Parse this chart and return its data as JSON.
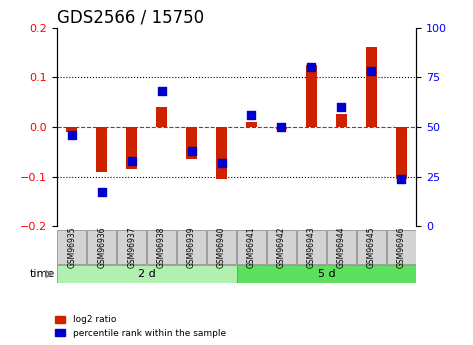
{
  "title": "GDS2566 / 15750",
  "samples": [
    "GSM96935",
    "GSM96936",
    "GSM96937",
    "GSM96938",
    "GSM96939",
    "GSM96940",
    "GSM96941",
    "GSM96942",
    "GSM96943",
    "GSM96944",
    "GSM96945",
    "GSM96946"
  ],
  "log2_ratio": [
    -0.01,
    -0.09,
    -0.085,
    0.04,
    -0.065,
    -0.105,
    0.01,
    -0.005,
    0.125,
    0.025,
    0.16,
    -0.105
  ],
  "percentile_rank": [
    46,
    17,
    33,
    68,
    38,
    32,
    56,
    50,
    80,
    60,
    78,
    24
  ],
  "groups": [
    {
      "label": "2 d",
      "start": 0,
      "end": 6,
      "color": "#90EE90"
    },
    {
      "label": "5 d",
      "start": 6,
      "end": 12,
      "color": "#32CD32"
    }
  ],
  "ylim_left": [
    -0.2,
    0.2
  ],
  "ylim_right": [
    0,
    100
  ],
  "yticks_left": [
    -0.2,
    -0.1,
    0.0,
    0.1,
    0.2
  ],
  "yticks_right": [
    0,
    25,
    50,
    75,
    100
  ],
  "bar_color": "#CC2200",
  "dot_color": "#0000CC",
  "dotted_line_color": "black",
  "zero_line_color": "#CC2200",
  "bg_color": "white",
  "plot_bg": "white",
  "legend_entries": [
    "log2 ratio",
    "percentile rank within the sample"
  ],
  "time_label": "time",
  "title_fontsize": 12,
  "tick_fontsize": 7,
  "label_fontsize": 8
}
